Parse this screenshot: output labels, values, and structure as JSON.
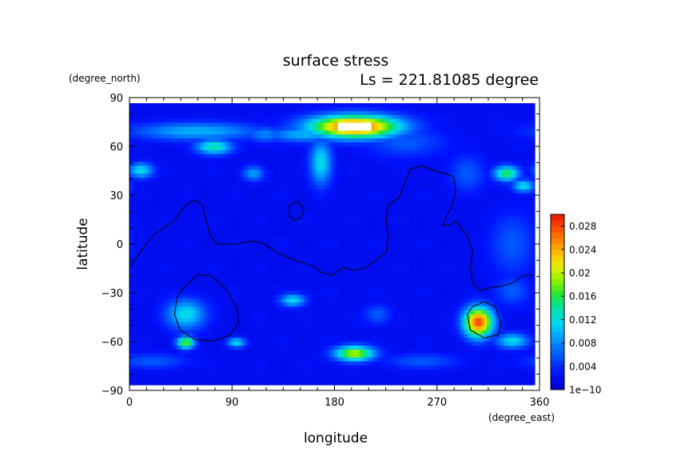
{
  "chart_data": {
    "type": "heatmap",
    "title": "surface stress",
    "subtitle": "Ls = 221.81085 degree",
    "xlabel": "longitude",
    "ylabel": "latitude",
    "x_units": "(degree_east)",
    "y_units": "(degree_north)",
    "xlim": [
      0,
      360
    ],
    "ylim": [
      -90,
      90
    ],
    "x_ticks": [
      "0",
      "90",
      "180",
      "270",
      "360"
    ],
    "y_ticks": [
      "90",
      "60",
      "30",
      "0",
      "−30",
      "−60",
      "−90"
    ],
    "colorbar": {
      "min": 0,
      "max": 0.03,
      "tick_values": [
        0,
        0.004,
        0.008,
        0.012,
        0.016,
        0.02,
        0.024,
        0.028
      ],
      "tick_labels": [
        "1e−10",
        "0.004",
        "0.008",
        "0.012",
        "0.016",
        "0.02",
        "0.024",
        "0.028"
      ]
    },
    "background_level": 0.002,
    "features": [
      {
        "lon": 200,
        "lat": 75,
        "rx": 50,
        "ry": 9,
        "value": 0.029,
        "saturated": true
      },
      {
        "lon": 155,
        "lat": 70,
        "rx": 40,
        "ry": 6,
        "value": 0.01
      },
      {
        "lon": 170,
        "lat": 52,
        "rx": 12,
        "ry": 18,
        "value": 0.012
      },
      {
        "lon": 60,
        "lat": 72,
        "rx": 70,
        "ry": 7,
        "value": 0.01
      },
      {
        "lon": 120,
        "lat": 70,
        "rx": 20,
        "ry": 6,
        "value": 0.008
      },
      {
        "lon": 10,
        "lat": 47,
        "rx": 14,
        "ry": 6,
        "value": 0.012
      },
      {
        "lon": 75,
        "lat": 62,
        "rx": 20,
        "ry": 6,
        "value": 0.014
      },
      {
        "lon": 110,
        "lat": 45,
        "rx": 12,
        "ry": 6,
        "value": 0.009
      },
      {
        "lon": 335,
        "lat": 45,
        "rx": 14,
        "ry": 6,
        "value": 0.016
      },
      {
        "lon": 350,
        "lat": 37,
        "rx": 12,
        "ry": 5,
        "value": 0.012
      },
      {
        "lon": 300,
        "lat": 45,
        "rx": 20,
        "ry": 15,
        "value": 0.006
      },
      {
        "lon": 245,
        "lat": 65,
        "rx": 45,
        "ry": 12,
        "value": 0.006
      },
      {
        "lon": 340,
        "lat": 0,
        "rx": 25,
        "ry": 25,
        "value": 0.006
      },
      {
        "lon": 310,
        "lat": -50,
        "rx": 16,
        "ry": 12,
        "value": 0.028
      },
      {
        "lon": 340,
        "lat": -62,
        "rx": 18,
        "ry": 6,
        "value": 0.012
      },
      {
        "lon": 50,
        "lat": -45,
        "rx": 22,
        "ry": 12,
        "value": 0.012
      },
      {
        "lon": 50,
        "lat": -63,
        "rx": 10,
        "ry": 5,
        "value": 0.018
      },
      {
        "lon": 95,
        "lat": -63,
        "rx": 10,
        "ry": 4,
        "value": 0.012
      },
      {
        "lon": 145,
        "lat": -36,
        "rx": 14,
        "ry": 5,
        "value": 0.012
      },
      {
        "lon": 200,
        "lat": -70,
        "rx": 22,
        "ry": 6,
        "value": 0.02
      },
      {
        "lon": 220,
        "lat": -45,
        "rx": 15,
        "ry": 8,
        "value": 0.006
      },
      {
        "lon": 20,
        "lat": -75,
        "rx": 40,
        "ry": 6,
        "value": 0.006
      },
      {
        "lon": 260,
        "lat": -75,
        "rx": 40,
        "ry": 6,
        "value": 0.006
      },
      {
        "lon": 340,
        "lat": -30,
        "rx": 20,
        "ry": 12,
        "value": 0.006
      }
    ],
    "contour_lines": [
      [
        [
          0,
          -15
        ],
        [
          10,
          -5
        ],
        [
          20,
          5
        ],
        [
          30,
          10
        ],
        [
          40,
          15
        ],
        [
          50,
          25
        ],
        [
          58,
          28
        ],
        [
          65,
          25
        ],
        [
          68,
          15
        ],
        [
          72,
          5
        ],
        [
          78,
          0
        ],
        [
          95,
          0
        ],
        [
          110,
          2
        ],
        [
          120,
          0
        ],
        [
          130,
          -5
        ],
        [
          145,
          -10
        ],
        [
          155,
          -12
        ],
        [
          165,
          -15
        ],
        [
          170,
          -18
        ],
        [
          180,
          -20
        ],
        [
          190,
          -15
        ],
        [
          200,
          -17
        ],
        [
          210,
          -15
        ],
        [
          220,
          -10
        ],
        [
          228,
          -5
        ],
        [
          230,
          5
        ],
        [
          228,
          15
        ],
        [
          230,
          25
        ],
        [
          240,
          30
        ],
        [
          245,
          40
        ],
        [
          250,
          48
        ],
        [
          260,
          50
        ],
        [
          270,
          47
        ],
        [
          280,
          45
        ],
        [
          288,
          43
        ],
        [
          290,
          35
        ],
        [
          287,
          25
        ],
        [
          282,
          18
        ],
        [
          278,
          12
        ],
        [
          285,
          12
        ],
        [
          290,
          15
        ],
        [
          295,
          10
        ],
        [
          300,
          5
        ],
        [
          305,
          -5
        ],
        [
          303,
          -15
        ],
        [
          305,
          -25
        ],
        [
          312,
          -30
        ],
        [
          320,
          -28
        ],
        [
          330,
          -27
        ],
        [
          340,
          -25
        ],
        [
          350,
          -20
        ],
        [
          360,
          -20
        ]
      ],
      [
        [
          60,
          -20
        ],
        [
          72,
          -20
        ],
        [
          85,
          -28
        ],
        [
          95,
          -40
        ],
        [
          97,
          -50
        ],
        [
          90,
          -58
        ],
        [
          75,
          -62
        ],
        [
          58,
          -61
        ],
        [
          45,
          -55
        ],
        [
          40,
          -45
        ],
        [
          42,
          -35
        ],
        [
          48,
          -28
        ],
        [
          60,
          -20
        ]
      ],
      [
        [
          142,
          25
        ],
        [
          150,
          27
        ],
        [
          155,
          22
        ],
        [
          153,
          17
        ],
        [
          147,
          15
        ],
        [
          142,
          18
        ],
        [
          142,
          25
        ]
      ],
      [
        [
          315,
          -37
        ],
        [
          325,
          -40
        ],
        [
          330,
          -50
        ],
        [
          328,
          -58
        ],
        [
          315,
          -60
        ],
        [
          303,
          -55
        ],
        [
          300,
          -45
        ],
        [
          305,
          -40
        ],
        [
          315,
          -37
        ]
      ]
    ]
  }
}
